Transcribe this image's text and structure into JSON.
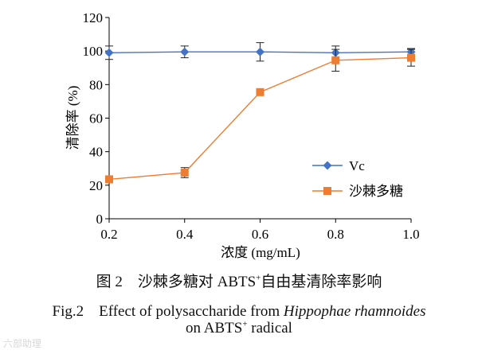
{
  "chart_data": {
    "type": "line",
    "x": [
      0.2,
      0.4,
      0.6,
      0.8,
      1.0
    ],
    "xlabel": "浓度 (mg/mL)",
    "ylabel": "清除率 (%)",
    "xlim": [
      0.2,
      1.0
    ],
    "ylim": [
      0,
      120
    ],
    "xticks": [
      "0.2",
      "0.4",
      "0.6",
      "0.8",
      "1.0"
    ],
    "yticks": [
      "0",
      "20",
      "40",
      "60",
      "80",
      "100",
      "120"
    ],
    "grid": false,
    "legend": "right",
    "series": [
      {
        "name": "Vc",
        "values": [
          99,
          99.5,
          99.5,
          99,
          99.5
        ],
        "errors": [
          4,
          3.5,
          5.5,
          4,
          2
        ],
        "color": "#4472C4",
        "marker": "diamond"
      },
      {
        "name": "沙棘多糖",
        "values": [
          23.5,
          27.5,
          75.5,
          94.5,
          96
        ],
        "errors": [
          2,
          3,
          1,
          6.5,
          5
        ],
        "color": "#ED7D31",
        "marker": "square"
      }
    ]
  },
  "caption": {
    "cn_prefix": "图 2　沙棘多糖对 ABTS",
    "cn_sup": "+",
    "cn_suffix": "自由基清除率影响",
    "en_prefix": "Fig.2　Effect of polysaccharide from ",
    "en_italic": "Hippophae rhamnoides",
    "en2_prefix": "on ABTS",
    "en2_sup": "+",
    "en2_suffix": " radical"
  },
  "watermark": "六部助理"
}
